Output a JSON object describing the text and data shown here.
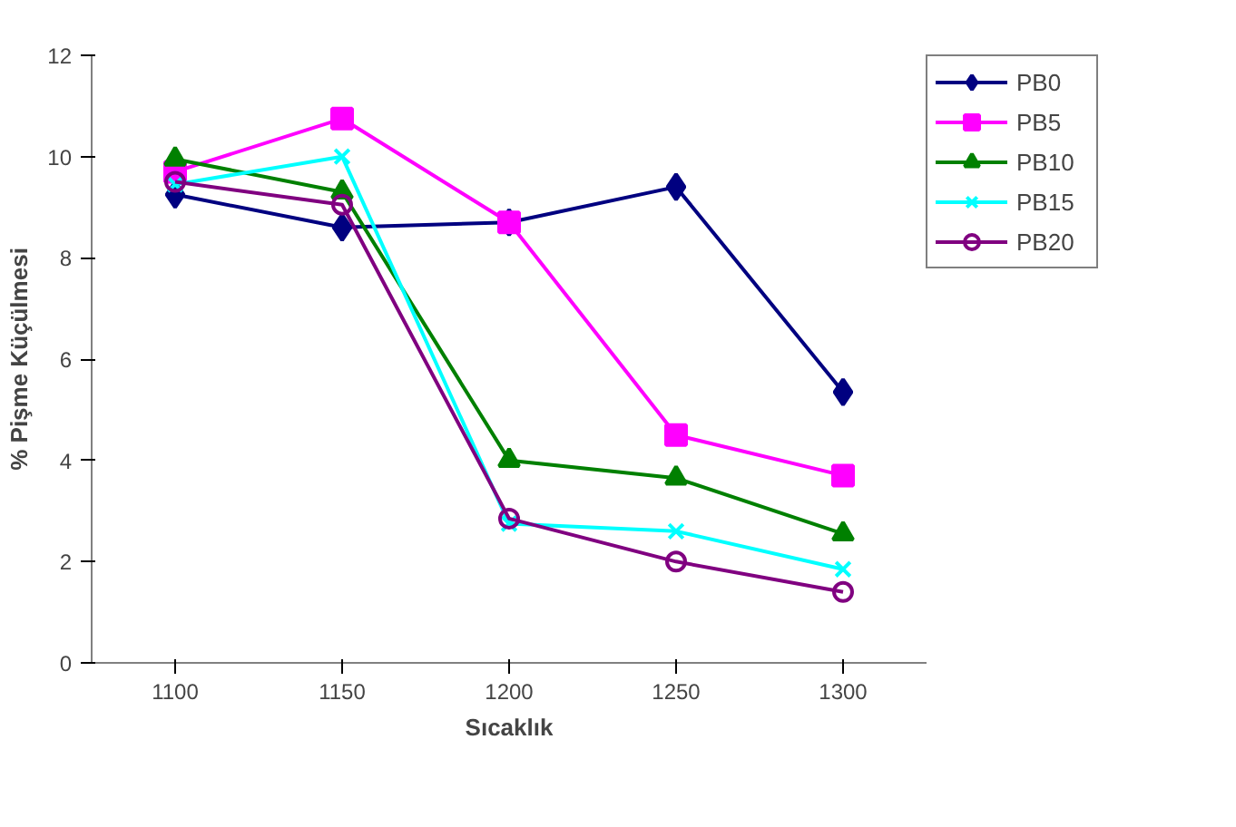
{
  "chart_data": {
    "type": "line",
    "xlabel": "Sıcaklık",
    "ylabel": "% Pişme Küçülmesi",
    "categories": [
      "1100",
      "1150",
      "1200",
      "1250",
      "1300"
    ],
    "series": [
      {
        "name": "PB0",
        "color": "#000080",
        "marker": "diamond",
        "values": [
          9.25,
          8.6,
          8.7,
          9.4,
          5.35
        ]
      },
      {
        "name": "PB5",
        "color": "#ff00ff",
        "marker": "square",
        "values": [
          9.7,
          10.75,
          8.7,
          4.5,
          3.7
        ]
      },
      {
        "name": "PB10",
        "color": "#008000",
        "marker": "triangle",
        "values": [
          9.95,
          9.3,
          4.0,
          3.65,
          2.55
        ]
      },
      {
        "name": "PB15",
        "color": "#00ffff",
        "marker": "cross",
        "values": [
          9.45,
          10.0,
          2.75,
          2.6,
          1.85
        ]
      },
      {
        "name": "PB20",
        "color": "#800080",
        "marker": "circle",
        "values": [
          9.5,
          9.05,
          2.85,
          2.0,
          1.4
        ]
      }
    ],
    "ylim": [
      0,
      12
    ],
    "yticks": [
      0,
      2,
      4,
      6,
      8,
      10,
      12
    ],
    "grid": false,
    "legend": "top right"
  }
}
